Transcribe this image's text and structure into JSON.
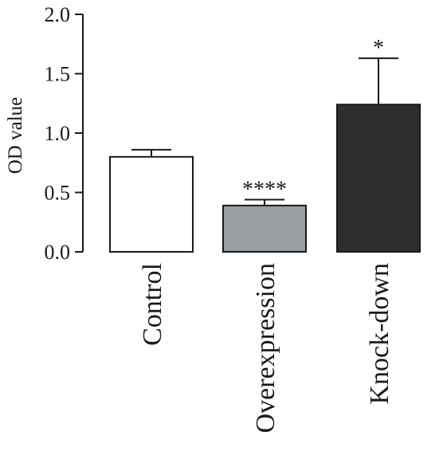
{
  "chart_data": {
    "type": "bar",
    "categories": [
      "Control",
      "Overexpression",
      "Knock-down"
    ],
    "values": [
      0.8,
      0.39,
      1.24
    ],
    "error": [
      0.06,
      0.05,
      0.39
    ],
    "significance": [
      "",
      "****",
      "*"
    ],
    "bar_colors": [
      "#ffffff",
      "#9a9da2",
      "#2e2e2e"
    ],
    "ylabel": "OD value",
    "xlabel": "",
    "title": "",
    "ylim": [
      0,
      2.0
    ],
    "yticks": [
      "0.0",
      "0.5",
      "1.0",
      "1.5",
      "2.0"
    ],
    "grid": false,
    "legend": "none"
  }
}
